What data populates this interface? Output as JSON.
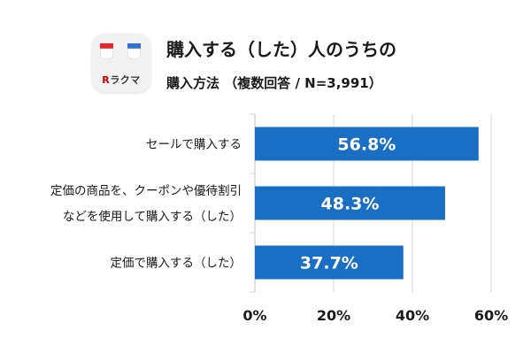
{
  "logo": {
    "text_r": "R",
    "text_rest": "ラクマ",
    "cup_colors": [
      "#e8232a",
      "#ffffff",
      "#2f6fd6"
    ]
  },
  "chart_data": {
    "type": "bar",
    "orientation": "horizontal",
    "title_line1": "購入する（した）人のうちの",
    "title_line2": "購入方法 （複数回答 / N=3,991）",
    "categories": [
      [
        "セールで購入する"
      ],
      [
        "定価の商品を、クーポンや優待割引",
        "などを使用して購入する（した）"
      ],
      [
        "定価で購入する（した）"
      ]
    ],
    "values": [
      56.8,
      48.3,
      37.7
    ],
    "value_labels": [
      "56.8%",
      "48.3%",
      "37.7%"
    ],
    "xlim": [
      0,
      60
    ],
    "xticks": [
      0,
      20,
      40,
      60
    ],
    "xtick_labels": [
      "0%",
      "20%",
      "40%",
      "60%"
    ],
    "grid": true,
    "bar_color": "#1a6ec4",
    "grid_color": "#d6d6d6"
  }
}
